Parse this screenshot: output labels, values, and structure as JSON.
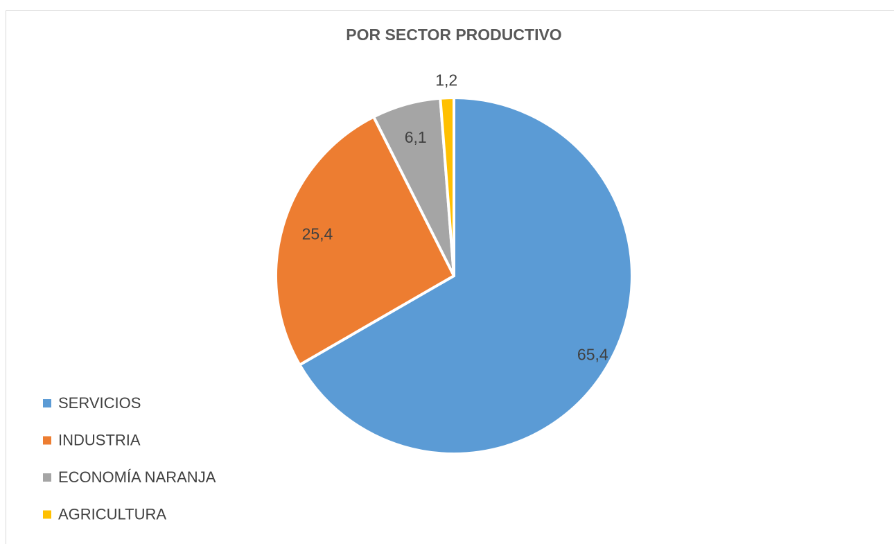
{
  "chart_data": {
    "type": "pie",
    "title": "POR SECTOR PRODUCTIVO",
    "categories": [
      "SERVICIOS",
      "INDUSTRIA",
      "ECONOMÍA NARANJA",
      "AGRICULTURA"
    ],
    "values": [
      65.4,
      25.4,
      6.1,
      1.2
    ],
    "value_labels": [
      "65,4",
      "25,4",
      "6,1",
      "1,2"
    ],
    "colors": [
      "#5b9bd5",
      "#ed7d31",
      "#a5a5a5",
      "#ffc000"
    ],
    "legend": "left"
  }
}
